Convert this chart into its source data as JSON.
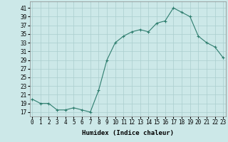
{
  "x": [
    0,
    1,
    2,
    3,
    4,
    5,
    6,
    7,
    8,
    9,
    10,
    11,
    12,
    13,
    14,
    15,
    16,
    17,
    18,
    19,
    20,
    21,
    22,
    23
  ],
  "y": [
    20,
    19,
    19,
    17.5,
    17.5,
    18,
    17.5,
    17,
    22,
    29,
    33,
    34.5,
    35.5,
    36,
    35.5,
    37.5,
    38,
    41,
    40,
    39,
    34.5,
    33,
    32,
    29.5
  ],
  "line_color": "#2e7d6e",
  "marker": "+",
  "bg_color": "#cce8e8",
  "grid_color": "#aacece",
  "xlabel": "Humidex (Indice chaleur)",
  "ytick_labels": [
    "17",
    "19",
    "21",
    "23",
    "25",
    "27",
    "29",
    "31",
    "33",
    "35",
    "37",
    "39",
    "41"
  ],
  "ytick_vals": [
    17,
    19,
    21,
    23,
    25,
    27,
    29,
    31,
    33,
    35,
    37,
    39,
    41
  ],
  "xtick_vals": [
    0,
    1,
    2,
    3,
    4,
    5,
    6,
    7,
    8,
    9,
    10,
    11,
    12,
    13,
    14,
    15,
    16,
    17,
    18,
    19,
    20,
    21,
    22,
    23
  ],
  "xlim": [
    -0.3,
    23.3
  ],
  "ylim": [
    16.0,
    42.5
  ],
  "xlabel_fontsize": 6.5,
  "tick_fontsize": 5.5
}
